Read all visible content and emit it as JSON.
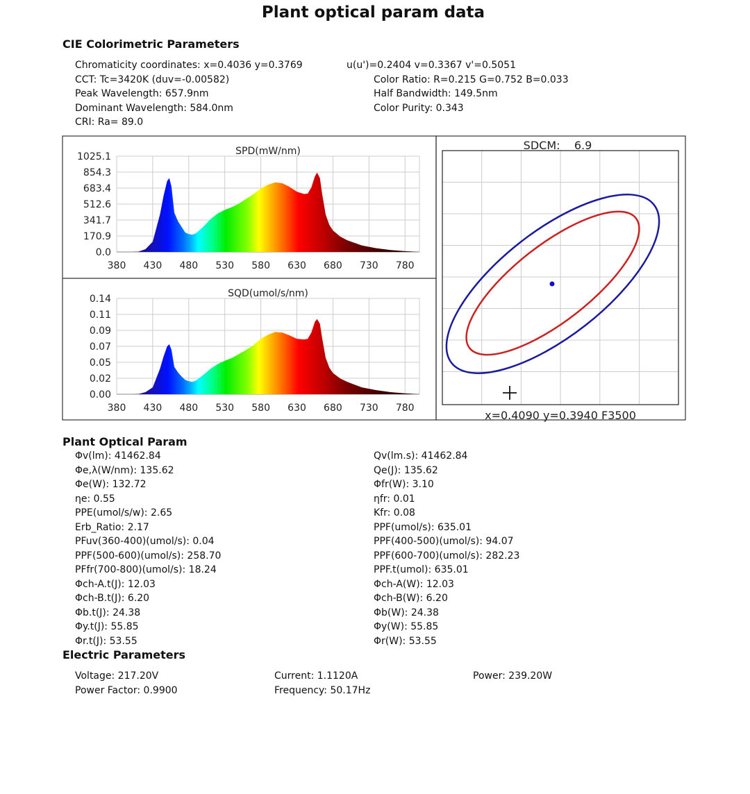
{
  "title": "Plant optical param data",
  "cie": {
    "heading": "CIE Colorimetric Parameters",
    "left": [
      "Chromaticity coordinates: x=0.4036 y=0.3769",
      "CCT: Tc=3420K (duv=-0.00582)",
      "Peak Wavelength: 657.9nm",
      "Dominant Wavelength: 584.0nm",
      "CRI: Ra= 89.0"
    ],
    "right": [
      "u(u')=0.2404 v=0.3367 v'=0.5051",
      "Color Ratio: R=0.215  G=0.752  B=0.033",
      "Half Bandwidth: 149.5nm",
      "Color Purity: 0.343"
    ]
  },
  "plant": {
    "heading": "Plant Optical Param",
    "left": [
      "Φv(lm):  41462.84",
      "Φe,λ(W/nm):  135.62",
      "Φe(W):  132.72",
      "ηe:   0.55",
      "PPE(umol/s/w):   2.65",
      "Erb_Ratio:   2.17",
      "PFuv(360-400)(umol/s):   0.04",
      "PPF(500-600)(umol/s):  258.70",
      "PFfr(700-800)(umol/s):  18.24",
      "Φch-A.t(J):  12.03",
      "Φch-B.t(J):   6.20",
      "Φb.t(J):  24.38",
      "Φy.t(J):  55.85",
      "Φr.t(J):  53.55"
    ],
    "right": [
      "Qv(lm.s):  41462.84",
      "Qe(J):  135.62",
      "Φfr(W):   3.10",
      "ηfr:   0.01",
      "Kfr:   0.08",
      "PPF(umol/s):  635.01",
      "PPF(400-500)(umol/s):  94.07",
      "PPF(600-700)(umol/s):  282.23",
      "PPF.t(umol):  635.01",
      "Φch-A(W):  12.03",
      "Φch-B(W):   6.20",
      "Φb(W):  24.38",
      "Φy(W):  55.85",
      "Φr(W):  53.55"
    ]
  },
  "electric": {
    "heading": "Electric Parameters",
    "voltage": "Voltage: 217.20V",
    "power_factor": "Power Factor: 0.9900",
    "current": "Current: 1.1120A",
    "frequency": "Frequency: 50.17Hz",
    "power": "Power: 239.20W"
  },
  "chart_data": [
    {
      "type": "area",
      "title": "SPD(mW/nm)",
      "xlim": [
        380,
        800
      ],
      "ylim": [
        0,
        1025.1
      ],
      "x_ticks": [
        "380",
        "430",
        "480",
        "530",
        "580",
        "630",
        "680",
        "730",
        "780"
      ],
      "y_ticks": [
        "0.0",
        "170.9",
        "341.7",
        "512.6",
        "683.4",
        "854.3",
        "1025.1"
      ],
      "grid": true,
      "fill": "spectral-rainbow",
      "x": [
        380,
        400,
        410,
        420,
        430,
        440,
        445,
        450,
        453,
        456,
        460,
        465,
        470,
        475,
        480,
        485,
        490,
        500,
        510,
        520,
        530,
        540,
        550,
        560,
        570,
        580,
        590,
        600,
        610,
        620,
        630,
        640,
        645,
        650,
        655,
        658,
        662,
        665,
        670,
        675,
        680,
        690,
        700,
        720,
        740,
        760,
        780,
        800
      ],
      "values": [
        0,
        0,
        3,
        30,
        110,
        400,
        600,
        760,
        790,
        700,
        420,
        330,
        270,
        210,
        190,
        185,
        200,
        270,
        350,
        410,
        450,
        480,
        520,
        570,
        620,
        680,
        720,
        745,
        735,
        695,
        645,
        620,
        625,
        690,
        810,
        850,
        790,
        620,
        400,
        290,
        230,
        165,
        125,
        70,
        40,
        20,
        8,
        0
      ]
    },
    {
      "type": "area",
      "title": "SQD(umol/s/nm)",
      "xlim": [
        380,
        800
      ],
      "ylim": [
        0,
        0.14
      ],
      "x_ticks": [
        "380",
        "430",
        "480",
        "530",
        "580",
        "630",
        "680",
        "730",
        "780"
      ],
      "y_ticks": [
        "0.00",
        "0.02",
        "0.05",
        "0.07",
        "0.09",
        "0.11",
        "0.14"
      ],
      "grid": true,
      "fill": "spectral-rainbow",
      "x": [
        380,
        400,
        410,
        420,
        430,
        440,
        445,
        450,
        453,
        456,
        460,
        465,
        470,
        475,
        480,
        485,
        490,
        500,
        510,
        520,
        530,
        540,
        550,
        560,
        570,
        580,
        590,
        600,
        610,
        620,
        630,
        640,
        645,
        650,
        655,
        658,
        662,
        665,
        670,
        675,
        680,
        690,
        700,
        720,
        740,
        760,
        780,
        800
      ],
      "values": [
        0,
        0,
        0.0003,
        0.003,
        0.01,
        0.037,
        0.055,
        0.07,
        0.073,
        0.065,
        0.04,
        0.032,
        0.026,
        0.021,
        0.019,
        0.018,
        0.02,
        0.028,
        0.037,
        0.044,
        0.049,
        0.053,
        0.059,
        0.065,
        0.072,
        0.081,
        0.087,
        0.091,
        0.09,
        0.086,
        0.081,
        0.08,
        0.081,
        0.09,
        0.106,
        0.11,
        0.103,
        0.082,
        0.053,
        0.039,
        0.031,
        0.023,
        0.018,
        0.01,
        0.006,
        0.003,
        0.0012,
        0
      ]
    },
    {
      "type": "scatter",
      "title": "SDCM:    6.9",
      "footer": "x=0.4090 y=0.3940 F3500",
      "grid": true,
      "ellipses": [
        {
          "color": "#1a1aa0"
        },
        {
          "color": "#cc2222"
        }
      ],
      "point_color": "#1010cc"
    }
  ]
}
